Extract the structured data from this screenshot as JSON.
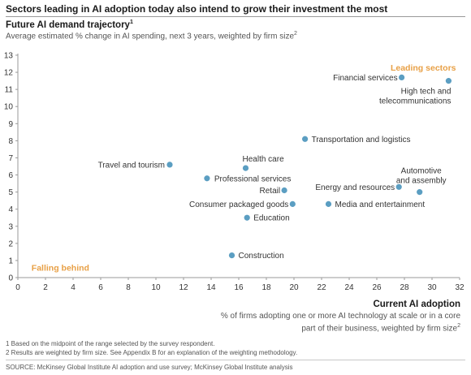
{
  "title": "Sectors leading in AI adoption today also intend to grow their investment the most",
  "y_title": "Future AI demand trajectory",
  "y_title_note": "1",
  "y_subtitle": "Average estimated % change in AI spending, next 3 years, weighted by firm size",
  "y_subtitle_note": "2",
  "x_title": "Current AI adoption",
  "x_subtitle": "% of firms adopting one or more AI technology at scale or in a core part of their business, weighted by firm size",
  "x_subtitle_note": "2",
  "footnotes": [
    "1  Based on the midpoint of the range selected by the survey respondent.",
    "2  Results are weighted by firm size. See Appendix B for an explanation of the weighting methodology."
  ],
  "source": "SOURCE:  McKinsey Global Institute AI adoption and use survey; McKinsey Global Institute analysis",
  "colors": {
    "point": "#5b9ec2",
    "annotation": "#e8a046",
    "axis": "#9a9a9a",
    "text": "#333333"
  },
  "chart_data": {
    "type": "scatter",
    "xlim": [
      0,
      32
    ],
    "ylim": [
      0,
      13
    ],
    "x_ticks": [
      0,
      2,
      4,
      6,
      8,
      10,
      12,
      14,
      16,
      18,
      20,
      22,
      24,
      26,
      28,
      30,
      32
    ],
    "y_ticks": [
      0,
      1,
      2,
      3,
      4,
      5,
      6,
      7,
      8,
      9,
      10,
      11,
      12,
      13
    ],
    "grid": false,
    "points": [
      {
        "label": "Financial services",
        "x": 27.8,
        "y": 11.7
      },
      {
        "label": "High tech and telecommunications",
        "x": 31.2,
        "y": 11.5
      },
      {
        "label": "Transportation and logistics",
        "x": 20.8,
        "y": 8.1
      },
      {
        "label": "Travel and tourism",
        "x": 11.0,
        "y": 6.6
      },
      {
        "label": "Health care",
        "x": 16.5,
        "y": 6.4
      },
      {
        "label": "Professional services",
        "x": 13.7,
        "y": 5.8
      },
      {
        "label": "Retail",
        "x": 19.3,
        "y": 5.1
      },
      {
        "label": "Consumer packaged goods",
        "x": 19.9,
        "y": 4.3
      },
      {
        "label": "Energy and resources",
        "x": 27.6,
        "y": 5.3
      },
      {
        "label": "Automotive and assembly",
        "x": 29.1,
        "y": 5.0
      },
      {
        "label": "Media and entertainment",
        "x": 22.5,
        "y": 4.3
      },
      {
        "label": "Education",
        "x": 16.6,
        "y": 3.5
      },
      {
        "label": "Construction",
        "x": 15.5,
        "y": 1.3
      }
    ],
    "annotations": [
      {
        "text": "Leading sectors",
        "x": 31.5,
        "y": 12.3
      },
      {
        "text": "Falling behind",
        "x": 0.4,
        "y": 0.6
      }
    ]
  }
}
